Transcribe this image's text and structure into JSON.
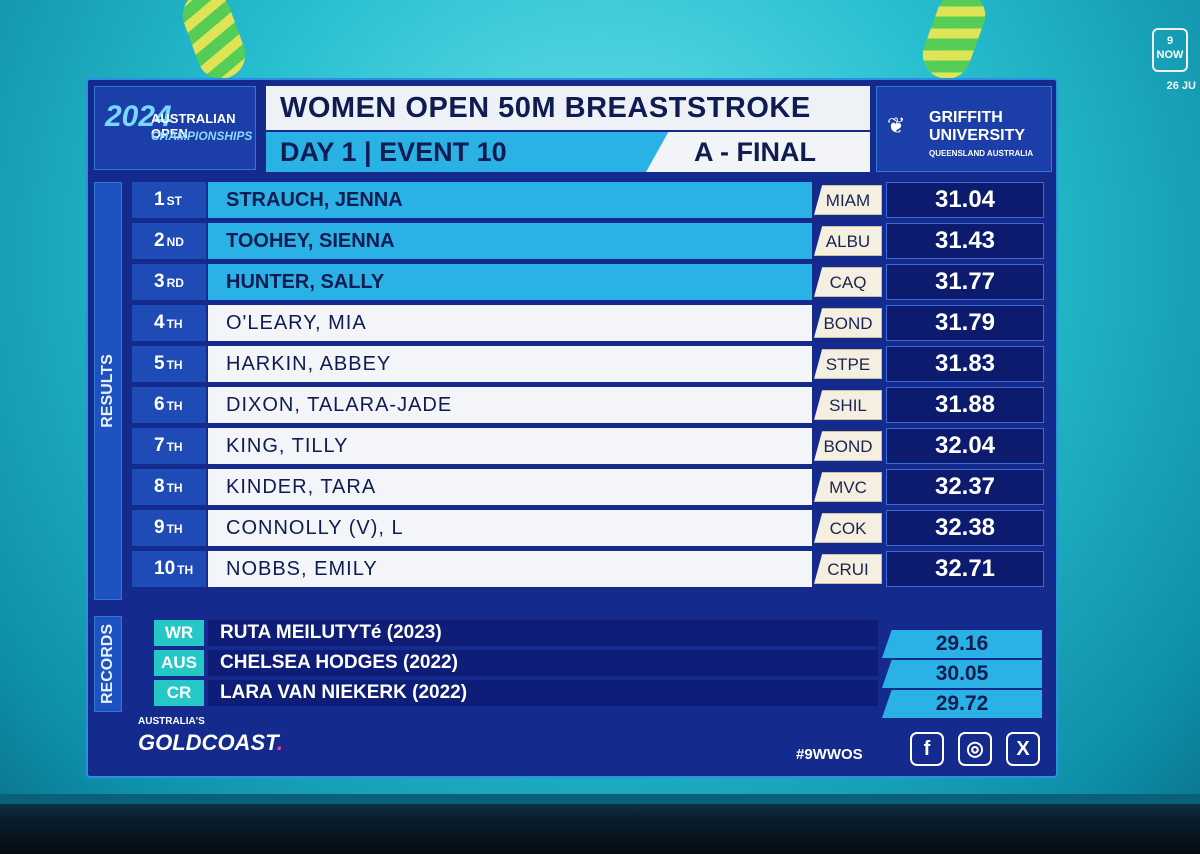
{
  "header": {
    "logo_year": "2024",
    "logo_line1": "AUSTRALIAN OPEN",
    "logo_line2": "CHAMPIONSHIPS",
    "event_title": "WOMEN OPEN 50M BREASTSTROKE",
    "day_event": "DAY 1 | EVENT 10",
    "final_label": "A - FINAL",
    "sponsor_line1": "GRIFFITH",
    "sponsor_line2": "UNIVERSITY",
    "sponsor_line3": "QUEENSLAND AUSTRALIA"
  },
  "channel": {
    "logo": "9 NOW",
    "date": "26 JU"
  },
  "side_labels": {
    "results": "RESULTS",
    "records": "RECORDS"
  },
  "results": [
    {
      "place": "1",
      "suffix": "ST",
      "name": "STRAUCH, JENNA",
      "club": "MIAM",
      "time": "31.04",
      "medal": true
    },
    {
      "place": "2",
      "suffix": "ND",
      "name": "TOOHEY, SIENNA",
      "club": "ALBU",
      "time": "31.43",
      "medal": true
    },
    {
      "place": "3",
      "suffix": "RD",
      "name": "HUNTER, SALLY",
      "club": "CAQ",
      "time": "31.77",
      "medal": true
    },
    {
      "place": "4",
      "suffix": "TH",
      "name": "O'LEARY, MIA",
      "club": "BOND",
      "time": "31.79",
      "medal": false
    },
    {
      "place": "5",
      "suffix": "TH",
      "name": "HARKIN, ABBEY",
      "club": "STPE",
      "time": "31.83",
      "medal": false
    },
    {
      "place": "6",
      "suffix": "TH",
      "name": "DIXON, TALARA-JADE",
      "club": "SHIL",
      "time": "31.88",
      "medal": false
    },
    {
      "place": "7",
      "suffix": "TH",
      "name": "KING, TILLY",
      "club": "BOND",
      "time": "32.04",
      "medal": false
    },
    {
      "place": "8",
      "suffix": "TH",
      "name": "KINDER, TARA",
      "club": "MVC",
      "time": "32.37",
      "medal": false
    },
    {
      "place": "9",
      "suffix": "TH",
      "name": "CONNOLLY (V), L",
      "club": "COK",
      "time": "32.38",
      "medal": false
    },
    {
      "place": "10",
      "suffix": "TH",
      "name": "NOBBS, EMILY",
      "club": "CRUI",
      "time": "32.71",
      "medal": false
    }
  ],
  "records": [
    {
      "code": "WR",
      "holder": "RUTA MEILUTYTé (2023)",
      "time": "29.16"
    },
    {
      "code": "AUS",
      "holder": "CHELSEA HODGES (2022)",
      "time": "30.05"
    },
    {
      "code": "CR",
      "holder": "LARA VAN NIEKERK (2022)",
      "time": "29.72"
    }
  ],
  "footer": {
    "gc_small": "AUSTRALIA'S",
    "gc_big": "GOLDCOAST",
    "hashtag": "#9WWOS",
    "social_icons": [
      "facebook-icon",
      "instagram-icon",
      "x-icon"
    ]
  },
  "colors": {
    "board_bg": "#142a8c",
    "accent_cyan": "#2ab2e6",
    "record_code": "#25c8c6",
    "time_bg": "#0c1b6e"
  }
}
